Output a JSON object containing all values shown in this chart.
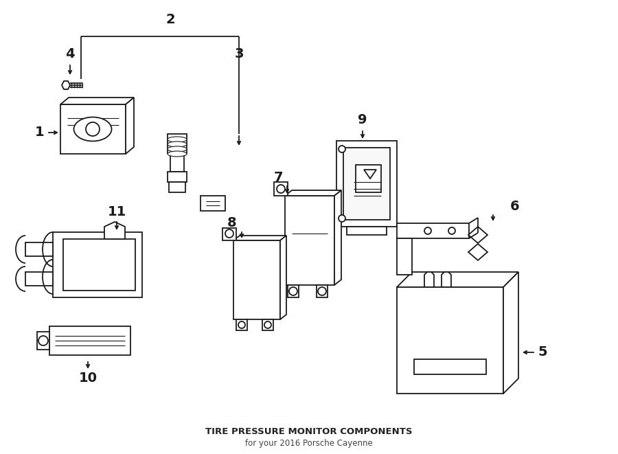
{
  "title": "TIRE PRESSURE MONITOR COMPONENTS",
  "subtitle": "for your 2016 Porsche Cayenne",
  "bg_color": "#ffffff",
  "lc": "#1a1a1a",
  "lw": 1.3,
  "fig_width": 9.0,
  "fig_height": 6.61
}
